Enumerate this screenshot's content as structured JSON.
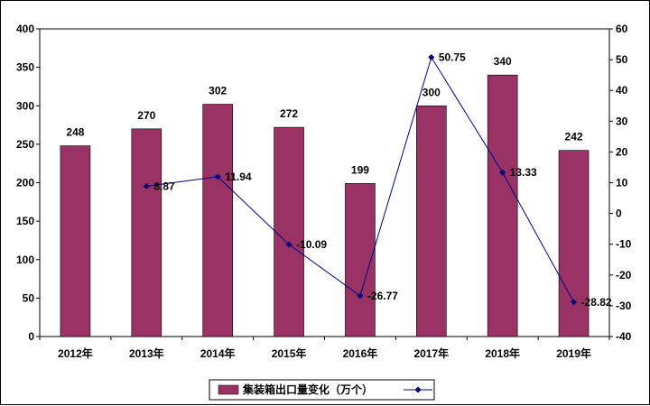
{
  "chart_data": {
    "type": "bar",
    "categories": [
      "2012年",
      "2013年",
      "2014年",
      "2015年",
      "2016年",
      "2017年",
      "2018年",
      "2019年"
    ],
    "series": [
      {
        "name": "集装箱出口量变化（万个）",
        "type": "bar",
        "axis": "left",
        "values": [
          248,
          270,
          302,
          272,
          199,
          300,
          340,
          242
        ],
        "color": "#993366"
      },
      {
        "name": "",
        "type": "line",
        "axis": "right",
        "values": [
          null,
          8.87,
          11.94,
          -10.09,
          -26.77,
          50.75,
          13.33,
          -28.82
        ],
        "color": "#000080"
      }
    ],
    "y_left": {
      "min": 0,
      "max": 400,
      "step": 50,
      "ticks": [
        "0",
        "50",
        "100",
        "150",
        "200",
        "250",
        "300",
        "350",
        "400"
      ]
    },
    "y_right": {
      "min": -40,
      "max": 60,
      "step": 10,
      "ticks": [
        "-40",
        "-30",
        "-20",
        "-10",
        "0",
        "10",
        "20",
        "30",
        "40",
        "50",
        "60"
      ]
    },
    "bar_labels": [
      "248",
      "270",
      "302",
      "272",
      "199",
      "300",
      "340",
      "242"
    ],
    "line_labels": [
      "",
      "8.87",
      "11.94",
      "-10.09",
      "-26.77",
      "50.75",
      "13.33",
      "-28.82"
    ],
    "legend": {
      "position": "bottom",
      "bar_entry": "集装箱出口量变化（万个）"
    },
    "grid": false
  }
}
